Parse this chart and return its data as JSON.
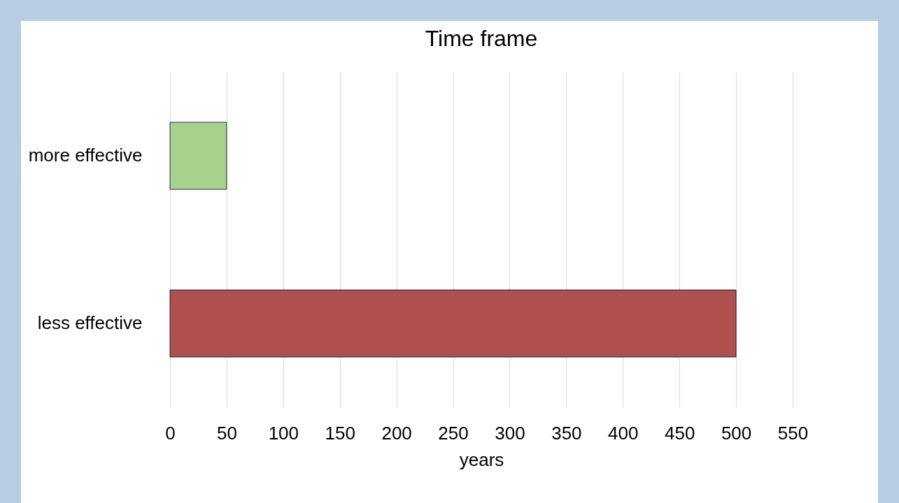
{
  "chart_data": {
    "type": "bar",
    "orientation": "horizontal",
    "title": "Time frame",
    "xlabel": "years",
    "categories": [
      "more effective",
      "less effective"
    ],
    "values": [
      50,
      500
    ],
    "colors": [
      "#a9d18e",
      "#ae5050"
    ],
    "xlim": [
      0,
      550
    ],
    "xticks": [
      0,
      50,
      100,
      150,
      200,
      250,
      300,
      350,
      400,
      450,
      500,
      550
    ],
    "grid": "x",
    "legend": false
  }
}
